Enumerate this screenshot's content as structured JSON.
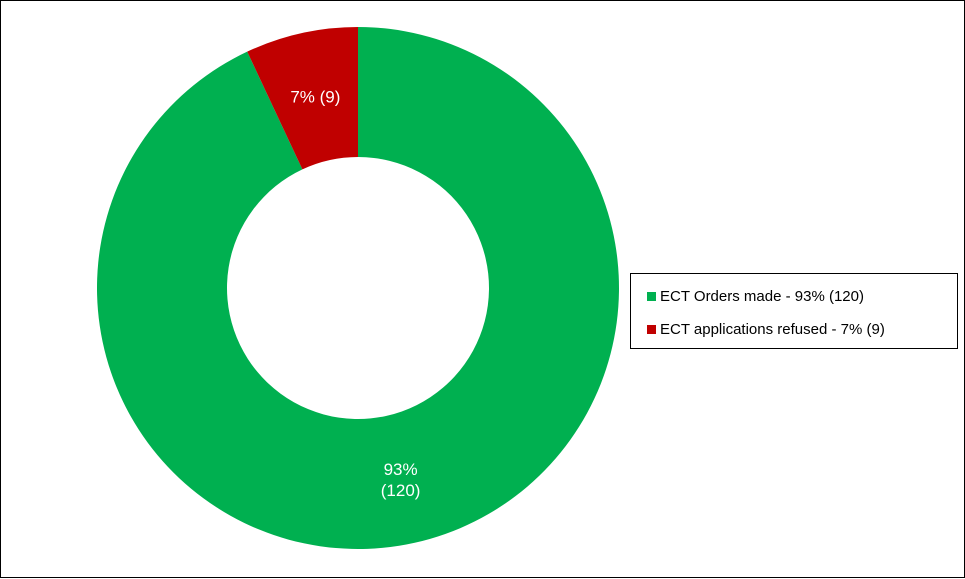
{
  "chart_data": {
    "type": "pie",
    "variant": "donut",
    "slices": [
      {
        "label": "ECT Orders made - 93% (120)",
        "value": 120,
        "percent": 93,
        "data_label": [
          "93%",
          "(120)"
        ],
        "color": "#00B050"
      },
      {
        "label": "ECT applications refused - 7% (9)",
        "value": 9,
        "percent": 7,
        "data_label": [
          "7% (9)"
        ],
        "color": "#C00000"
      }
    ],
    "legend_position": "right"
  }
}
